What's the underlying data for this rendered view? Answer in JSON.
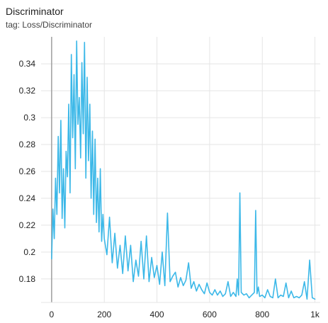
{
  "card": {
    "title": "Discriminator",
    "tag": "tag: Loss/Discriminator"
  },
  "colors": {
    "series": "#3cb8e8",
    "grid": "#e5e5e5",
    "zero_line": "#9e9e9e"
  },
  "chart_data": {
    "type": "line",
    "title": "Discriminator",
    "subtitle": "tag: Loss/Discriminator",
    "xlabel": "",
    "ylabel": "",
    "xlim": [
      -40,
      1020
    ],
    "ylim": [
      0.1625,
      0.358
    ],
    "grid": true,
    "x_ticks": [
      {
        "value": 0,
        "label": "0"
      },
      {
        "value": 200,
        "label": "200"
      },
      {
        "value": 400,
        "label": "400"
      },
      {
        "value": 600,
        "label": "600"
      },
      {
        "value": 800,
        "label": "800"
      },
      {
        "value": 1000,
        "label": "1k"
      }
    ],
    "y_ticks": [
      {
        "value": 0.18,
        "label": "0.18"
      },
      {
        "value": 0.2,
        "label": "0.2"
      },
      {
        "value": 0.22,
        "label": "0.22"
      },
      {
        "value": 0.24,
        "label": "0.24"
      },
      {
        "value": 0.26,
        "label": "0.26"
      },
      {
        "value": 0.28,
        "label": "0.28"
      },
      {
        "value": 0.3,
        "label": "0.3"
      },
      {
        "value": 0.32,
        "label": "0.32"
      },
      {
        "value": 0.34,
        "label": "0.34"
      }
    ],
    "series": [
      {
        "x": [
          0,
          5,
          10,
          15,
          20,
          25,
          30,
          35,
          40,
          45,
          50,
          55,
          60,
          65,
          70,
          75,
          80,
          85,
          90,
          95,
          100,
          105,
          110,
          115,
          120,
          125,
          130,
          135,
          140,
          145,
          150,
          155,
          160,
          165,
          170,
          175,
          180,
          185,
          190,
          195,
          200,
          210,
          220,
          230,
          240,
          250,
          260,
          270,
          280,
          290,
          300,
          310,
          320,
          330,
          340,
          350,
          360,
          370,
          380,
          390,
          400,
          410,
          420,
          430,
          440,
          450,
          460,
          470,
          480,
          490,
          500,
          510,
          520,
          530,
          540,
          550,
          560,
          570,
          580,
          590,
          600,
          610,
          620,
          630,
          640,
          650,
          660,
          670,
          680,
          690,
          700,
          705,
          710,
          715,
          720,
          730,
          740,
          750,
          760,
          770,
          775,
          780,
          785,
          790,
          800,
          810,
          820,
          830,
          840,
          850,
          860,
          870,
          880,
          890,
          900,
          910,
          920,
          930,
          940,
          950,
          960,
          970,
          980,
          990,
          1000
        ],
        "y": [
          0.195,
          0.232,
          0.21,
          0.255,
          0.228,
          0.286,
          0.244,
          0.298,
          0.225,
          0.262,
          0.218,
          0.275,
          0.256,
          0.31,
          0.244,
          0.347,
          0.285,
          0.332,
          0.262,
          0.357,
          0.295,
          0.315,
          0.27,
          0.341,
          0.288,
          0.356,
          0.255,
          0.33,
          0.268,
          0.31,
          0.24,
          0.29,
          0.228,
          0.284,
          0.222,
          0.255,
          0.215,
          0.262,
          0.208,
          0.228,
          0.21,
          0.198,
          0.226,
          0.192,
          0.214,
          0.188,
          0.205,
          0.184,
          0.212,
          0.186,
          0.205,
          0.178,
          0.194,
          0.182,
          0.208,
          0.18,
          0.212,
          0.178,
          0.196,
          0.181,
          0.19,
          0.176,
          0.2,
          0.175,
          0.229,
          0.178,
          0.182,
          0.185,
          0.174,
          0.181,
          0.175,
          0.179,
          0.192,
          0.173,
          0.178,
          0.171,
          0.176,
          0.172,
          0.169,
          0.177,
          0.17,
          0.168,
          0.172,
          0.168,
          0.171,
          0.167,
          0.169,
          0.178,
          0.167,
          0.17,
          0.167,
          0.18,
          0.168,
          0.244,
          0.17,
          0.168,
          0.169,
          0.166,
          0.168,
          0.17,
          0.231,
          0.169,
          0.174,
          0.167,
          0.168,
          0.166,
          0.172,
          0.167,
          0.166,
          0.18,
          0.166,
          0.168,
          0.167,
          0.177,
          0.166,
          0.171,
          0.166,
          0.167,
          0.166,
          0.168,
          0.178,
          0.165,
          0.194,
          0.166,
          0.165
        ]
      }
    ]
  }
}
